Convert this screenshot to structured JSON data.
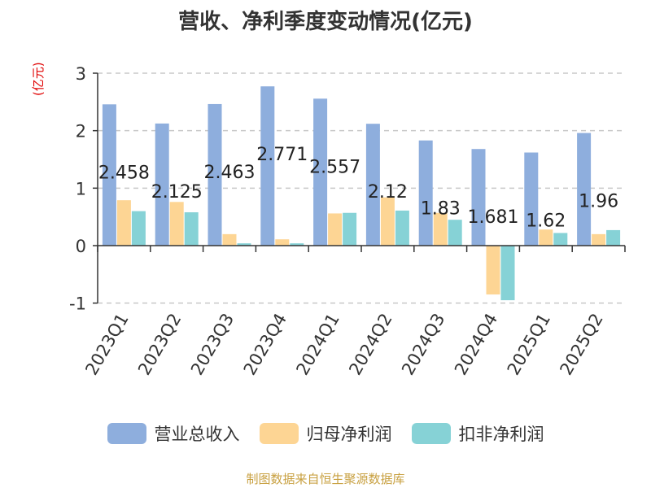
{
  "title": "营收、净利季度变动情况(亿元)",
  "unit": "(亿元)",
  "source": "制图数据来自恒生聚源数据库",
  "chart_data": {
    "type": "bar",
    "title": "营收、净利季度变动情况(亿元)",
    "ylabel": "(亿元)",
    "xlabel": "",
    "ylim": [
      -1,
      3
    ],
    "yticks": [
      -1,
      0,
      1,
      2,
      3
    ],
    "grid": true,
    "legend_position": "bottom",
    "categories": [
      "2023Q1",
      "2023Q2",
      "2023Q3",
      "2023Q4",
      "2024Q1",
      "2024Q2",
      "2024Q3",
      "2024Q4",
      "2025Q1",
      "2025Q2"
    ],
    "series": [
      {
        "name": "营业总收入",
        "color": "#8eaedd",
        "values": [
          2.458,
          2.125,
          2.463,
          2.771,
          2.557,
          2.12,
          1.83,
          1.681,
          1.62,
          1.96
        ],
        "labels": [
          "2.458",
          "2.125",
          "2.463",
          "2.771",
          "2.557",
          "2.12",
          "1.83",
          "1.681",
          "1.62",
          "1.96"
        ]
      },
      {
        "name": "归母净利润",
        "color": "#fdd594",
        "values": [
          0.79,
          0.76,
          0.2,
          0.11,
          0.56,
          0.84,
          0.57,
          -0.85,
          0.28,
          0.2
        ]
      },
      {
        "name": "扣非净利润",
        "color": "#86d2d6",
        "values": [
          0.6,
          0.58,
          0.04,
          0.04,
          0.57,
          0.61,
          0.45,
          -0.95,
          0.22,
          0.27
        ]
      }
    ]
  }
}
